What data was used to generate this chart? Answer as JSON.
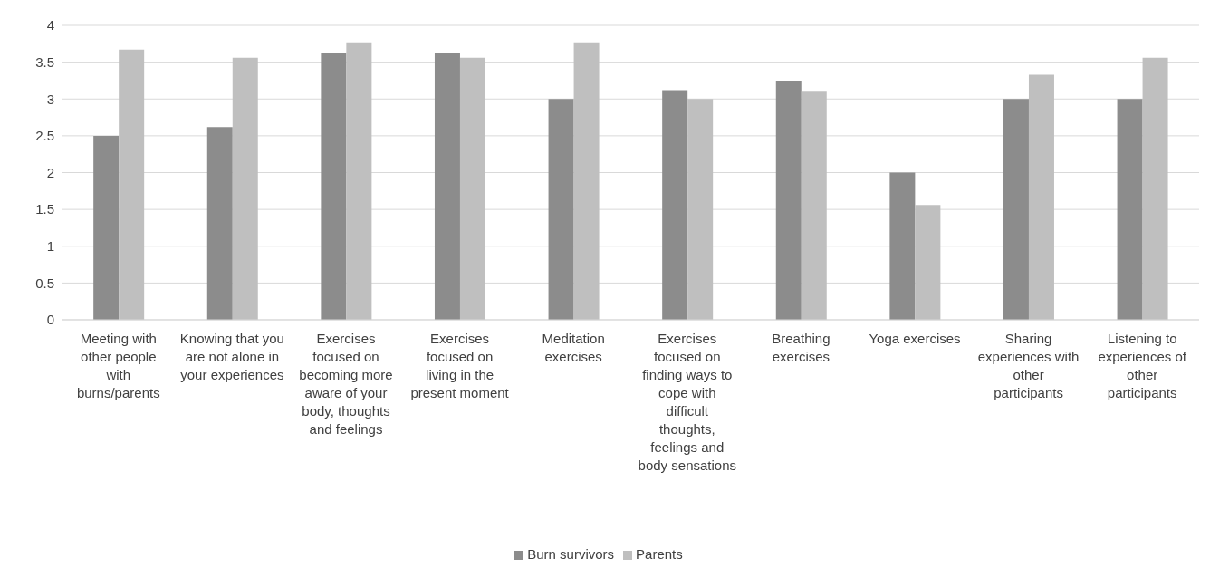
{
  "chart_data": {
    "type": "bar",
    "categories": [
      "Meeting with other people with burns/parents",
      "Knowing that you are not alone in your experiences",
      "Exercises focused on becoming more aware of your body, thoughts and feelings",
      "Exercises focused on living in the present moment",
      "Meditation exercises",
      "Exercises focused on finding ways to cope with difficult thoughts, feelings and body sensations",
      "Breathing exercises",
      "Yoga exercises",
      "Sharing experiences with other participants",
      "Listening to experiences of other participants"
    ],
    "series": [
      {
        "name": "Burn survivors",
        "color": "#8c8c8c",
        "values": [
          2.5,
          2.62,
          3.62,
          3.62,
          3.0,
          3.12,
          3.25,
          2.0,
          3.0,
          3.0
        ]
      },
      {
        "name": "Parents",
        "color": "#bfbfbf",
        "values": [
          3.67,
          3.56,
          3.77,
          3.56,
          3.77,
          3.0,
          3.11,
          1.56,
          3.33,
          3.56
        ]
      }
    ],
    "ylim": [
      0,
      4
    ],
    "yticks": [
      0,
      0.5,
      1,
      1.5,
      2,
      2.5,
      3,
      3.5,
      4
    ],
    "grid": "y",
    "legend": "bottom"
  }
}
